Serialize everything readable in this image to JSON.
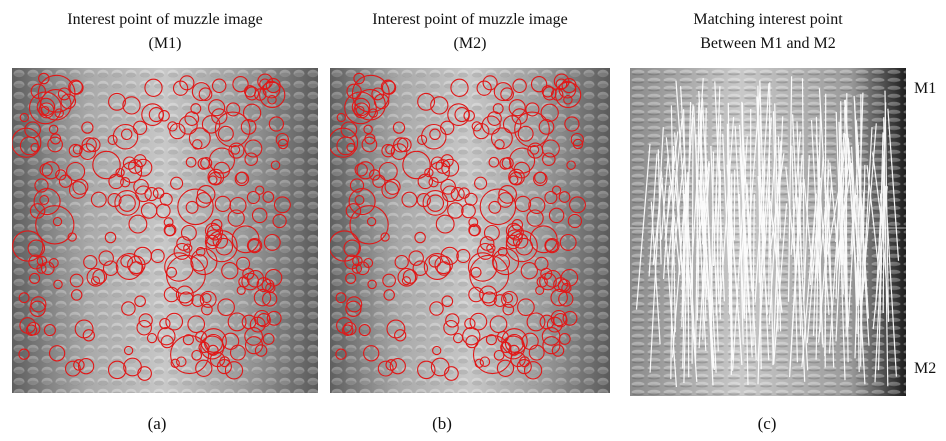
{
  "panels": [
    {
      "title_line1": "Interest point of muzzle image",
      "title_line2": "(M1)",
      "caption": "(a)"
    },
    {
      "title_line1": "Interest point of muzzle image",
      "title_line2": "(M2)",
      "caption": "(b)"
    },
    {
      "title_line1": "Matching interest point",
      "title_line2": "Between M1 and M2",
      "caption": "(c)"
    }
  ],
  "side_labels": {
    "top": "M1",
    "bottom": "M2"
  },
  "colors": {
    "interest_point": "#e01818",
    "match_line": "#ffffff"
  }
}
